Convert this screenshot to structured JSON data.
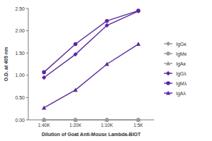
{
  "chart_data": {
    "type": "line",
    "x_label": "Dilution of Goat Anti-Mouse Lambda-BIOT",
    "y_label": "O.D. at 405 nm",
    "categories": [
      "1:40K",
      "1:20K",
      "1:10K",
      "1:5K"
    ],
    "series": [
      {
        "name": "IgGκ",
        "color": "#9a9a9a",
        "marker": "diamond",
        "values": [
          0.0,
          0.0,
          0.0,
          0.0
        ]
      },
      {
        "name": "IgMκ",
        "color": "#9a9a9a",
        "marker": "circle",
        "values": [
          0.0,
          0.0,
          0.0,
          0.0
        ]
      },
      {
        "name": "IgAκ",
        "color": "#9a9a9a",
        "marker": "triangle",
        "values": [
          0.0,
          0.0,
          0.0,
          0.0
        ]
      },
      {
        "name": "IgGλ",
        "color": "#5a2a9e",
        "marker": "diamond",
        "values": [
          0.95,
          1.47,
          2.12,
          2.44
        ]
      },
      {
        "name": "IgMλ",
        "color": "#5a2a9e",
        "marker": "circle",
        "values": [
          1.07,
          1.7,
          2.22,
          2.45
        ]
      },
      {
        "name": "IgAλ",
        "color": "#5a2a9e",
        "marker": "triangle",
        "values": [
          0.27,
          0.67,
          1.25,
          1.7
        ]
      }
    ],
    "ylim": [
      0,
      2.5
    ],
    "yticks": [
      {
        "value": 0,
        "label": "0.00"
      },
      {
        "value": 0.5,
        "label": "0.50"
      },
      {
        "value": 1,
        "label": "1.00"
      },
      {
        "value": 1.5,
        "label": "1.50"
      },
      {
        "value": 2,
        "label": "2.00"
      },
      {
        "value": 2.5,
        "label": "2.50"
      }
    ],
    "grid": false,
    "legend": "right"
  }
}
